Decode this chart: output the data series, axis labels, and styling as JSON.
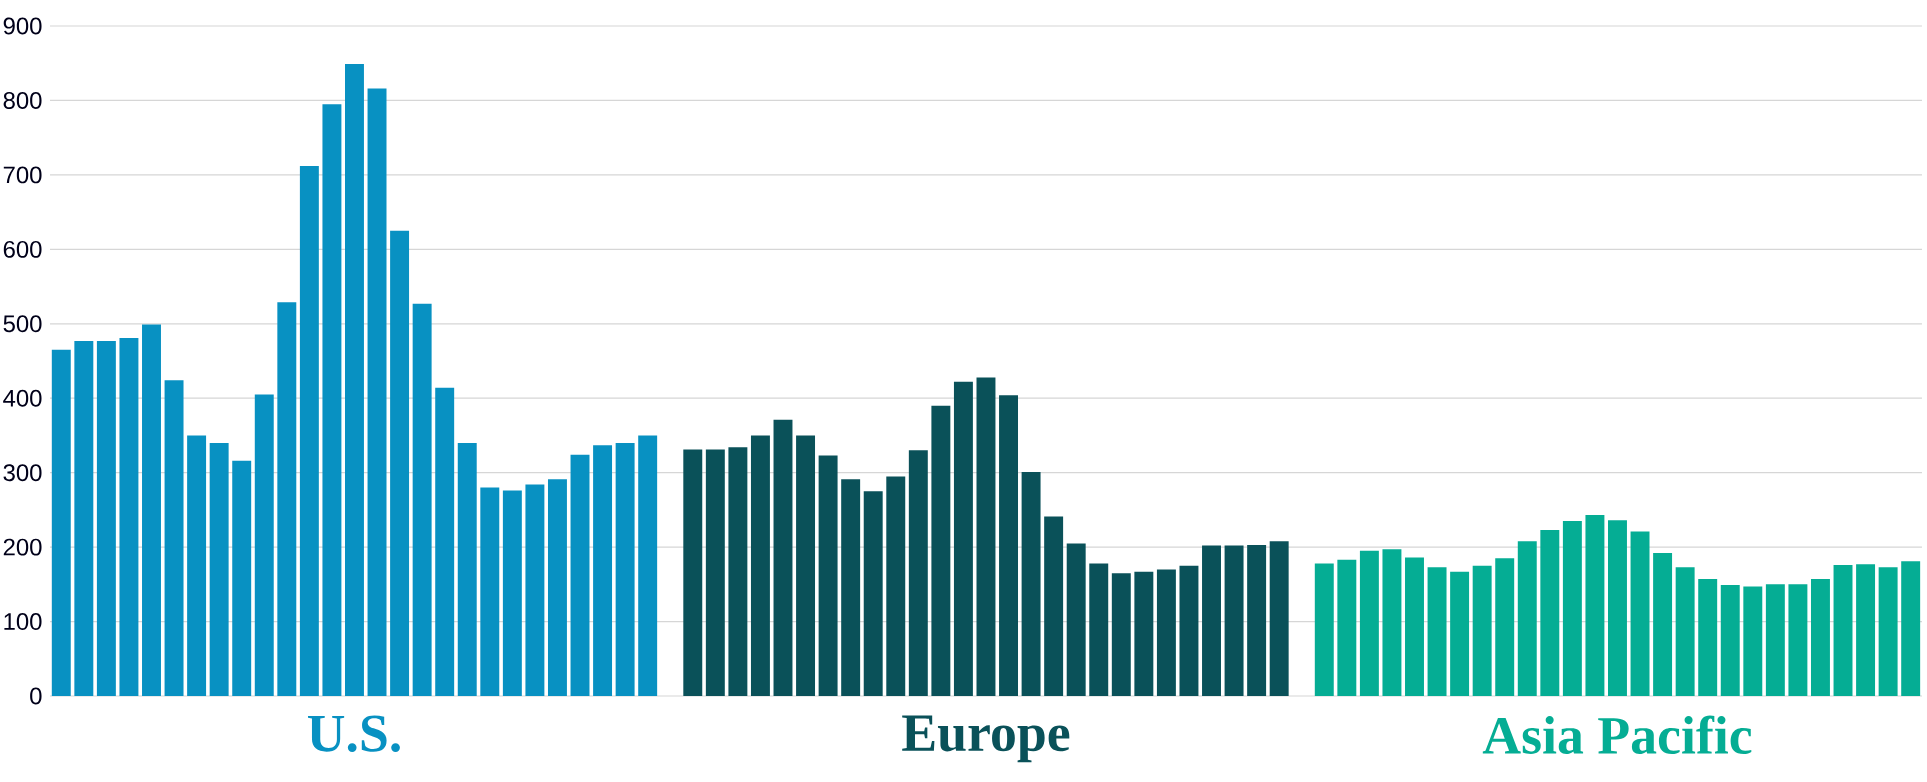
{
  "chart_data": {
    "type": "bar",
    "categories": [
      null,
      null,
      null,
      null,
      null,
      null,
      null,
      null,
      null,
      null,
      null,
      null,
      null,
      null,
      null,
      null,
      null,
      null,
      null,
      null,
      null,
      null,
      null,
      null,
      null,
      null,
      null,
      null,
      null,
      null,
      null,
      null,
      null,
      null,
      null,
      null,
      null,
      null,
      null,
      null,
      null,
      null,
      null,
      null,
      null,
      null,
      null,
      null,
      null,
      null,
      null,
      null,
      null,
      null,
      null,
      null,
      null,
      null,
      null,
      null,
      null,
      null,
      null,
      null,
      null,
      null,
      null,
      null,
      null,
      null,
      null,
      null,
      null,
      null,
      null,
      null,
      null,
      null,
      null,
      null,
      null,
      null,
      null
    ],
    "series": [
      {
        "name": "U.S.",
        "color": "#0891c2",
        "values": [
          465,
          477,
          477,
          481,
          499,
          424,
          350,
          340,
          316,
          405,
          529,
          712,
          795,
          849,
          816,
          625,
          527,
          414,
          340,
          280,
          276,
          284,
          291,
          324,
          337,
          340,
          350,
          null,
          null,
          null,
          null,
          null,
          null,
          null,
          null,
          null,
          null,
          null,
          null,
          null,
          null,
          null,
          null,
          null,
          null,
          null,
          null,
          null,
          null,
          null,
          null,
          null,
          null,
          null,
          null,
          null,
          null,
          null,
          null,
          null,
          null,
          null,
          null,
          null,
          null,
          null,
          null,
          null,
          null,
          null,
          null,
          null,
          null,
          null,
          null,
          null,
          null,
          null,
          null,
          null,
          null,
          null,
          null
        ]
      },
      {
        "name": "Europe",
        "color": "#0a5159",
        "values": [
          null,
          null,
          null,
          null,
          null,
          null,
          null,
          null,
          null,
          null,
          null,
          null,
          null,
          null,
          null,
          null,
          null,
          null,
          null,
          null,
          null,
          null,
          null,
          null,
          null,
          null,
          null,
          null,
          331,
          331,
          334,
          350,
          371,
          350,
          323,
          291,
          275,
          295,
          330,
          390,
          422,
          428,
          404,
          301,
          241,
          205,
          178,
          165,
          167,
          170,
          175,
          202,
          202,
          203,
          208,
          null,
          null,
          null,
          null,
          null,
          null,
          null,
          null,
          null,
          null,
          null,
          null,
          null,
          null,
          null,
          null,
          null,
          null,
          null,
          null,
          null,
          null,
          null,
          null,
          null,
          null,
          null,
          null
        ]
      },
      {
        "name": "Asia Pacific",
        "color": "#05ad94",
        "values": [
          null,
          null,
          null,
          null,
          null,
          null,
          null,
          null,
          null,
          null,
          null,
          null,
          null,
          null,
          null,
          null,
          null,
          null,
          null,
          null,
          null,
          null,
          null,
          null,
          null,
          null,
          null,
          null,
          null,
          null,
          null,
          null,
          null,
          null,
          null,
          null,
          null,
          null,
          null,
          null,
          null,
          null,
          null,
          null,
          null,
          null,
          null,
          null,
          null,
          null,
          null,
          null,
          null,
          null,
          null,
          null,
          178,
          183,
          195,
          197,
          186,
          173,
          167,
          175,
          185,
          208,
          223,
          235,
          243,
          236,
          221,
          192,
          173,
          157,
          149,
          147,
          150,
          150,
          157,
          176,
          177,
          173,
          181
        ]
      }
    ],
    "ylim": [
      0,
      900
    ],
    "yticks": [
      0,
      100,
      200,
      300,
      400,
      500,
      600,
      700,
      800,
      900
    ],
    "grid": "y"
  }
}
